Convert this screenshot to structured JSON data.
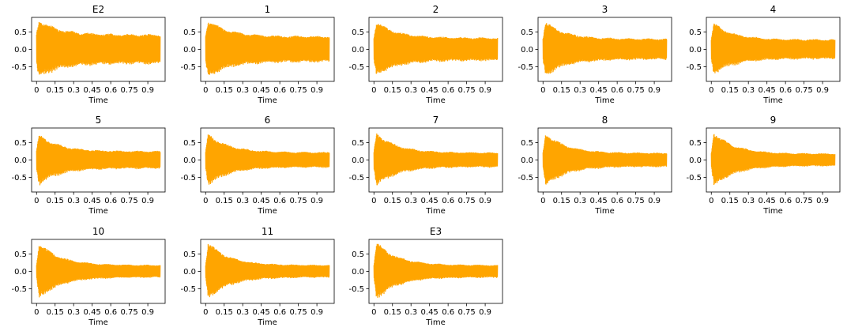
{
  "chart_data": {
    "type": "line",
    "layout_grid": "3 rows x 5 columns",
    "line_color": "#FFA500",
    "x_ticks": [
      "0",
      "0.15",
      "0.3",
      "0.45",
      "0.6",
      "0.75",
      "0.9"
    ],
    "x_tick_values": [
      0,
      0.15,
      0.3,
      0.45,
      0.6,
      0.75,
      0.9
    ],
    "y_ticks": [
      "0.5",
      "0.0",
      "-0.5"
    ],
    "y_tick_values": [
      0.5,
      0.0,
      -0.5
    ],
    "xlabel": "Time",
    "xlim": [
      -0.04,
      1.04
    ],
    "ylim": [
      -0.92,
      0.92
    ],
    "series": [
      {
        "title": "E2",
        "peak": 0.84,
        "tail": 0.42
      },
      {
        "title": "1",
        "peak": 0.83,
        "tail": 0.37
      },
      {
        "title": "2",
        "peak": 0.79,
        "tail": 0.33
      },
      {
        "title": "3",
        "peak": 0.78,
        "tail": 0.3
      },
      {
        "title": "4",
        "peak": 0.74,
        "tail": 0.28
      },
      {
        "title": "5",
        "peak": 0.72,
        "tail": 0.25
      },
      {
        "title": "6",
        "peak": 0.75,
        "tail": 0.22
      },
      {
        "title": "7",
        "peak": 0.77,
        "tail": 0.21
      },
      {
        "title": "8",
        "peak": 0.77,
        "tail": 0.2
      },
      {
        "title": "9",
        "peak": 0.8,
        "tail": 0.18
      },
      {
        "title": "10",
        "peak": 0.82,
        "tail": 0.18
      },
      {
        "title": "11",
        "peak": 0.83,
        "tail": 0.18
      },
      {
        "title": "E3",
        "peak": 0.83,
        "tail": 0.18
      }
    ]
  }
}
